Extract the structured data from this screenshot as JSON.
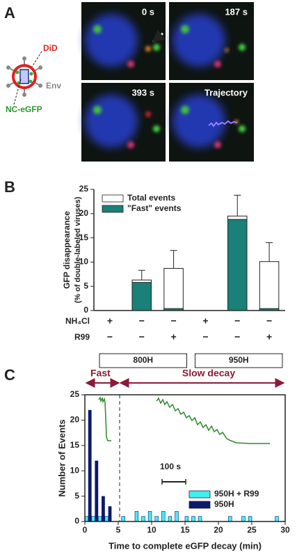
{
  "panel_a": {
    "label": "A",
    "frames": [
      "0 s",
      "187 s",
      "393 s",
      "Trajectory"
    ],
    "diagram": {
      "did": "DiD",
      "env": "Env",
      "nc": "NC-eGFP"
    }
  },
  "chart_data": [
    {
      "type": "bar",
      "panel_label": "B",
      "y_label": [
        "GFP disappearance",
        "(% of double-labeled viruses)"
      ],
      "categories": [
        null,
        null,
        null,
        null,
        null,
        null
      ],
      "series": [
        {
          "name": "Total events",
          "color": "#ffffff",
          "values": [
            0,
            6.3,
            8.7,
            0,
            19.5,
            10.1
          ],
          "errors": [
            0,
            2.0,
            3.7,
            0,
            4.3,
            3.9
          ]
        },
        {
          "name": "\"Fast\" events",
          "color": "#1a8078",
          "values": [
            0,
            5.8,
            0.4,
            0,
            18.8,
            0.4
          ]
        }
      ],
      "conditions": [
        {
          "name": "NH₄Cl",
          "values": [
            "+",
            "−",
            "−",
            "+",
            "−",
            "−"
          ]
        },
        {
          "name": "R99",
          "values": [
            "−",
            "−",
            "+",
            "−",
            "−",
            "+"
          ]
        }
      ],
      "groups": [
        "800H",
        "950H"
      ],
      "ylim": [
        0,
        25
      ],
      "yticks": [
        0,
        5,
        10,
        15,
        20,
        25
      ],
      "legend": "upper left"
    },
    {
      "type": "histogram",
      "panel_label": "C",
      "annotations": [
        "Fast",
        "Slow decay",
        "100 s"
      ],
      "x_label": "Time to complete eGFP decay (min)",
      "y_label": "Number of Events",
      "bins": [
        0,
        0.5,
        1,
        1.5,
        2,
        2.5,
        3,
        3.5,
        4,
        4.5,
        5,
        5.5,
        6,
        6.5,
        7,
        7.5,
        8,
        8.5,
        9,
        9.5,
        10,
        10.5,
        11,
        11.5,
        12,
        12.5,
        13,
        13.5,
        14,
        14.5,
        15,
        15.5,
        16,
        16.5,
        17,
        17.5,
        18,
        18.5,
        19,
        19.5,
        20,
        20.5,
        21,
        21.5,
        22,
        22.5,
        23,
        23.5,
        24,
        24.5,
        25,
        25.5,
        26,
        26.5,
        27,
        27.5,
        28,
        28.5,
        29,
        29.5,
        30
      ],
      "series": [
        {
          "name": "950H + R99",
          "color": "#40f0f0",
          "values": [
            1,
            0,
            1,
            0,
            1,
            0,
            1,
            0,
            0,
            0,
            0,
            1,
            0,
            0,
            0,
            2,
            0,
            1,
            0,
            2,
            0,
            1,
            0,
            2,
            0,
            1,
            0,
            2,
            0,
            0,
            1,
            0,
            1,
            0,
            1,
            0,
            0,
            0,
            0,
            0,
            0,
            0,
            0,
            1,
            0,
            0,
            0,
            1,
            0,
            1,
            0,
            0,
            0,
            0,
            0,
            0,
            0,
            1,
            0,
            0
          ]
        },
        {
          "name": "950H",
          "color": "#0a1a6e",
          "values": [
            0,
            22,
            0,
            12,
            0,
            5,
            0,
            3,
            0,
            0,
            0,
            0,
            0,
            0,
            0,
            0,
            0,
            0,
            0,
            0,
            0,
            0,
            0,
            0,
            0,
            0,
            0,
            0,
            0,
            0,
            0,
            0,
            0,
            0,
            0,
            0,
            0,
            0,
            0,
            0,
            0,
            0,
            0,
            0,
            0,
            0,
            0,
            0,
            0,
            0,
            0,
            0,
            0,
            0,
            0,
            0,
            0,
            0,
            0,
            0
          ]
        }
      ],
      "xlim": [
        0,
        30
      ],
      "xticks": [
        0,
        5,
        10,
        15,
        20,
        25,
        30
      ],
      "ylim": [
        0,
        25
      ],
      "yticks": [
        0,
        5,
        10,
        15,
        20,
        25
      ],
      "legend": "lower right"
    }
  ]
}
